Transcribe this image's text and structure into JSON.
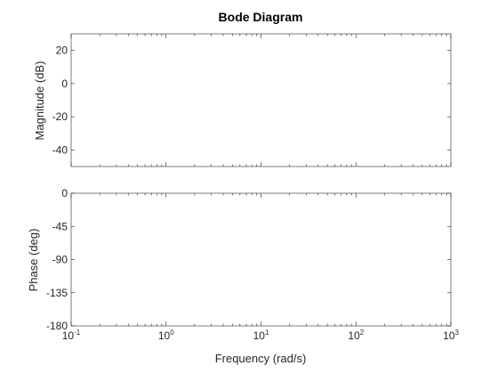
{
  "chart_data": {
    "type": "line",
    "title": "Bode Diagram",
    "xlabel": "Frequency (rad/s)",
    "xscale": "log",
    "xlim": [
      0.1,
      1000
    ],
    "x_ticks": [
      {
        "value": 0.1,
        "base": "10",
        "exp": "-1"
      },
      {
        "value": 1,
        "base": "10",
        "exp": "0"
      },
      {
        "value": 10,
        "base": "10",
        "exp": "1"
      },
      {
        "value": 100,
        "base": "10",
        "exp": "2"
      },
      {
        "value": 1000,
        "base": "10",
        "exp": "3"
      }
    ],
    "grid": false,
    "subplots": [
      {
        "id": "magnitude",
        "ylabel": "Magnitude (dB)",
        "ylim": [
          -50,
          30
        ],
        "y_ticks": [
          {
            "value": 20,
            "label": "20"
          },
          {
            "value": 0,
            "label": "0"
          },
          {
            "value": -20,
            "label": "-20"
          },
          {
            "value": -40,
            "label": "-40"
          }
        ],
        "series": []
      },
      {
        "id": "phase",
        "ylabel": "Phase (deg)",
        "ylim": [
          -180,
          0
        ],
        "y_ticks": [
          {
            "value": 0,
            "label": "0"
          },
          {
            "value": -45,
            "label": "-45"
          },
          {
            "value": -90,
            "label": "-90"
          },
          {
            "value": -135,
            "label": "-135"
          },
          {
            "value": -180,
            "label": "-180"
          }
        ],
        "series": []
      }
    ]
  }
}
